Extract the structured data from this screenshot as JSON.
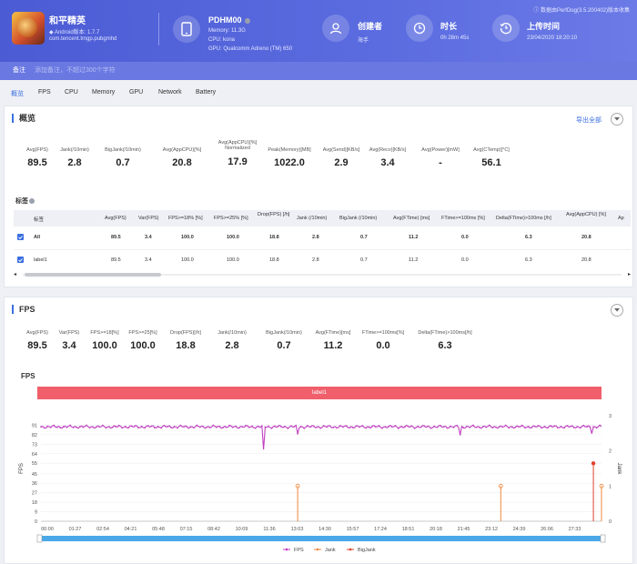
{
  "colors": {
    "header": "#5060dc",
    "accent": "#3b6fe0",
    "fps": "#c040c0",
    "jank": "#f0883c",
    "bigjank": "#e0402c",
    "label_bar": "#f05f6b"
  },
  "app": {
    "name": "和平精英",
    "android_version": "Android版本: 1.7.7",
    "package": "com.tencent.tmgp.pubgmhd"
  },
  "device": {
    "name": "PDHM00",
    "memory": "Memory: 11.3G",
    "cpu": "CPU: kona",
    "gpu": "GPU: Qualcomm Adreno (TM) 650"
  },
  "creator": {
    "title": "创建者",
    "value": "海手"
  },
  "duration": {
    "title": "时长",
    "value": "0h 28m 45s"
  },
  "upload": {
    "title": "上传时间",
    "value": "23/04/2020 18:20:10"
  },
  "tool_version": "数据由PerfDog(3.5.200402)版本收集",
  "note": {
    "label": "备注",
    "placeholder": "添加备注，不超过300个字符"
  },
  "tabs": [
    "概览",
    "FPS",
    "CPU",
    "Memory",
    "GPU",
    "Network",
    "Battery"
  ],
  "overview": {
    "title": "概览",
    "export_label": "导出全部",
    "stats": [
      {
        "label": "Avg(FPS)",
        "value": "89.5"
      },
      {
        "label": "Jank(/10min)",
        "value": "2.8"
      },
      {
        "label": "BigJank(/10min)",
        "value": "0.7"
      },
      {
        "label": "Avg(AppCPU)[%]",
        "value": "20.8"
      },
      {
        "label": "Avg(AppCPU)[%]",
        "label2": "Normalized",
        "value": "17.9"
      },
      {
        "label": "Peak(Memory)[MB]",
        "value": "1022.0"
      },
      {
        "label": "Avg(Send)[KB/s]",
        "value": "2.9"
      },
      {
        "label": "Avg(Recv)[KB/s]",
        "value": "3.4"
      },
      {
        "label": "Avg(Power)[mW]",
        "value": "-"
      },
      {
        "label": "Avg(CTemp)[°C]",
        "value": "56.1"
      }
    ],
    "tags_title": "标签",
    "table": {
      "headers": [
        "标签",
        "Avg(FPS)",
        "Var(FPS)",
        "FPS>=18% [%]",
        "FPS>=25% [%]",
        "Drop(FPS) [/h]",
        "Jank (/10min)",
        "BigJank (/10min)",
        "Avg(FTime) [ms]",
        "FTime>=100ms [%]",
        "Delta(FTime)>100ms [/h]",
        "Avg(AppCPU) [%]",
        "Ap"
      ],
      "rows": [
        [
          "All",
          "89.5",
          "3.4",
          "100.0",
          "100.0",
          "18.8",
          "2.8",
          "0.7",
          "11.2",
          "0.0",
          "6.3",
          "20.8"
        ],
        [
          "label1",
          "89.5",
          "3.4",
          "100.0",
          "100.0",
          "18.8",
          "2.8",
          "0.7",
          "11.2",
          "0.0",
          "6.3",
          "20.8"
        ]
      ]
    }
  },
  "fps_section": {
    "title": "FPS",
    "stats": [
      {
        "label": "Avg(FPS)",
        "value": "89.5"
      },
      {
        "label": "Var(FPS)",
        "value": "3.4"
      },
      {
        "label": "FPS>=18[%]",
        "value": "100.0"
      },
      {
        "label": "FPS>=25[%]",
        "value": "100.0"
      },
      {
        "label": "Drop(FPS)[/h]",
        "value": "18.8"
      },
      {
        "label": "Jank(/10min)",
        "value": "2.8"
      },
      {
        "label": "BigJank(/10min)",
        "value": "0.7"
      },
      {
        "label": "Avg(FTime)[ms]",
        "value": "11.2"
      },
      {
        "label": "FTime>=100ms[%]",
        "value": "0.0"
      },
      {
        "label": "Delta(FTime)>100ms[/h]",
        "value": "6.3"
      }
    ],
    "chart_title": "FPS",
    "label_bar": "label1"
  },
  "chart_data": {
    "type": "line",
    "title": "FPS",
    "ylabel": "FPS",
    "y2label": "Jank",
    "ylim": [
      0,
      100
    ],
    "y2lim": [
      0,
      3
    ],
    "yticks": [
      "91",
      "82",
      "73",
      "64",
      "55",
      "45",
      "36",
      "27",
      "18",
      "9",
      "0"
    ],
    "y2ticks": [
      "3",
      "2",
      "1",
      "0"
    ],
    "xticks": [
      "00:00",
      "01:27",
      "02:54",
      "04:21",
      "05:48",
      "07:15",
      "08:42",
      "10:09",
      "11:36",
      "13:03",
      "14:30",
      "15:57",
      "17:24",
      "18:51",
      "20:18",
      "21:45",
      "23:12",
      "24:39",
      "26:06",
      "27:33"
    ],
    "series": [
      {
        "name": "FPS",
        "baseline": 89.5,
        "dips": [
          {
            "t": 683,
            "v": 68
          },
          {
            "t": 790,
            "v": 83
          },
          {
            "t": 1290,
            "v": 82
          },
          {
            "t": 1695,
            "v": 83
          },
          {
            "t": 1730,
            "v": 83
          }
        ]
      },
      {
        "name": "Jank",
        "events": [
          {
            "t": 790,
            "v": 1
          },
          {
            "t": 1415,
            "v": 1
          },
          {
            "t": 1725,
            "v": 1
          }
        ]
      },
      {
        "name": "BigJank",
        "events": [
          {
            "t": 1700,
            "v": 1
          }
        ]
      }
    ],
    "legend": [
      "FPS",
      "Jank",
      "BigJank"
    ],
    "legend_position": "bottom",
    "xmax_seconds": 1725
  }
}
